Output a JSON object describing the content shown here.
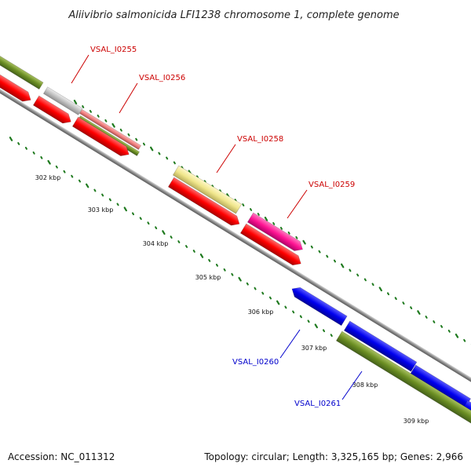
{
  "title": "Aliivibrio salmonicida LFI1238 chromosome 1, complete genome",
  "footer": {
    "accession": "Accession: NC_011312",
    "summary": "Topology: circular; Length: 3,325,165 bp; Genes: 2,966"
  },
  "colors": {
    "backbone": "#808080",
    "tick": "#1f7a1f",
    "forward_label": "#cc0000",
    "reverse_label": "#0000cc",
    "red_feature": "#ff0000",
    "blue_feature": "#0000ee",
    "olive_feature": "#6b8e23",
    "gray_feature": "#c0c0c0",
    "salmon_feature": "#f08080",
    "yellow_feature": "#f0e68c",
    "magenta_feature": "#ff1493"
  },
  "ticks": [
    {
      "label": "302 kbp"
    },
    {
      "label": "303 kbp"
    },
    {
      "label": "304 kbp"
    },
    {
      "label": "305 kbp"
    },
    {
      "label": "306 kbp"
    },
    {
      "label": "307 kbp"
    },
    {
      "label": "308 kbp"
    },
    {
      "label": "309 kbp"
    }
  ],
  "gene_labels": [
    {
      "text": "VSAL_I0255",
      "strand": "forward"
    },
    {
      "text": "VSAL_I0256",
      "strand": "forward"
    },
    {
      "text": "VSAL_I0258",
      "strand": "forward"
    },
    {
      "text": "VSAL_I0259",
      "strand": "forward"
    },
    {
      "text": "VSAL_I0260",
      "strand": "reverse"
    },
    {
      "text": "VSAL_I0261",
      "strand": "reverse"
    }
  ]
}
